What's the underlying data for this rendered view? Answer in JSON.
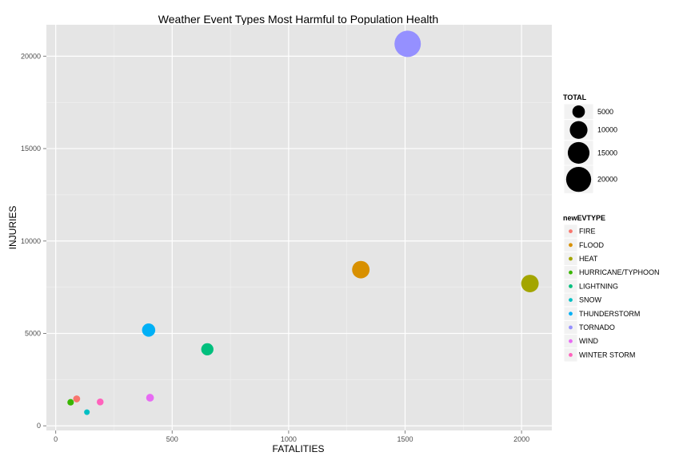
{
  "chart_data": {
    "type": "scatter",
    "title": "Weather Event Types Most Harmful to Population Health",
    "xlabel": "FATALITIES",
    "ylabel": "INJURIES",
    "xlim": [
      -40,
      2130
    ],
    "ylim": [
      -250,
      21700
    ],
    "xticks": [
      0,
      500,
      1000,
      1500,
      2000
    ],
    "yticks": [
      0,
      5000,
      10000,
      15000,
      20000
    ],
    "grid": true,
    "legend_placement": "right",
    "size_legend": {
      "title": "TOTAL",
      "entries": [
        {
          "label": "5000",
          "value": 5000
        },
        {
          "label": "10000",
          "value": 10000
        },
        {
          "label": "15000",
          "value": 15000
        },
        {
          "label": "20000",
          "value": 20000
        }
      ]
    },
    "color_legend": {
      "title": "newEVTYPE",
      "entries": [
        {
          "label": "FIRE",
          "color": "#F8766D"
        },
        {
          "label": "FLOOD",
          "color": "#D89000"
        },
        {
          "label": "HEAT",
          "color": "#A3A500"
        },
        {
          "label": "HURRICANE/TYPHOON",
          "color": "#39B600"
        },
        {
          "label": "LIGHTNING",
          "color": "#00BF7D"
        },
        {
          "label": "SNOW",
          "color": "#00BFC4"
        },
        {
          "label": "THUNDERSTORM",
          "color": "#00B0F6"
        },
        {
          "label": "TORNADO",
          "color": "#9590FF"
        },
        {
          "label": "WIND",
          "color": "#E76BF3"
        },
        {
          "label": "WINTER STORM",
          "color": "#FF62BC"
        }
      ]
    },
    "points": [
      {
        "category": "FIRE",
        "x": 90,
        "y": 1458,
        "total": 1548
      },
      {
        "category": "FLOOD",
        "x": 1310,
        "y": 8450,
        "total": 9760
      },
      {
        "category": "HEAT",
        "x": 2036,
        "y": 7700,
        "total": 9736
      },
      {
        "category": "HURRICANE/TYPHOON",
        "x": 64,
        "y": 1275,
        "total": 1339
      },
      {
        "category": "LIGHTNING",
        "x": 651,
        "y": 4141,
        "total": 4792
      },
      {
        "category": "SNOW",
        "x": 134,
        "y": 740,
        "total": 874
      },
      {
        "category": "THUNDERSTORM",
        "x": 399,
        "y": 5180,
        "total": 5579
      },
      {
        "category": "TORNADO",
        "x": 1511,
        "y": 20667,
        "total": 22178
      },
      {
        "category": "WIND",
        "x": 405,
        "y": 1520,
        "total": 1925
      },
      {
        "category": "WINTER STORM",
        "x": 191,
        "y": 1292,
        "total": 1483
      }
    ]
  }
}
